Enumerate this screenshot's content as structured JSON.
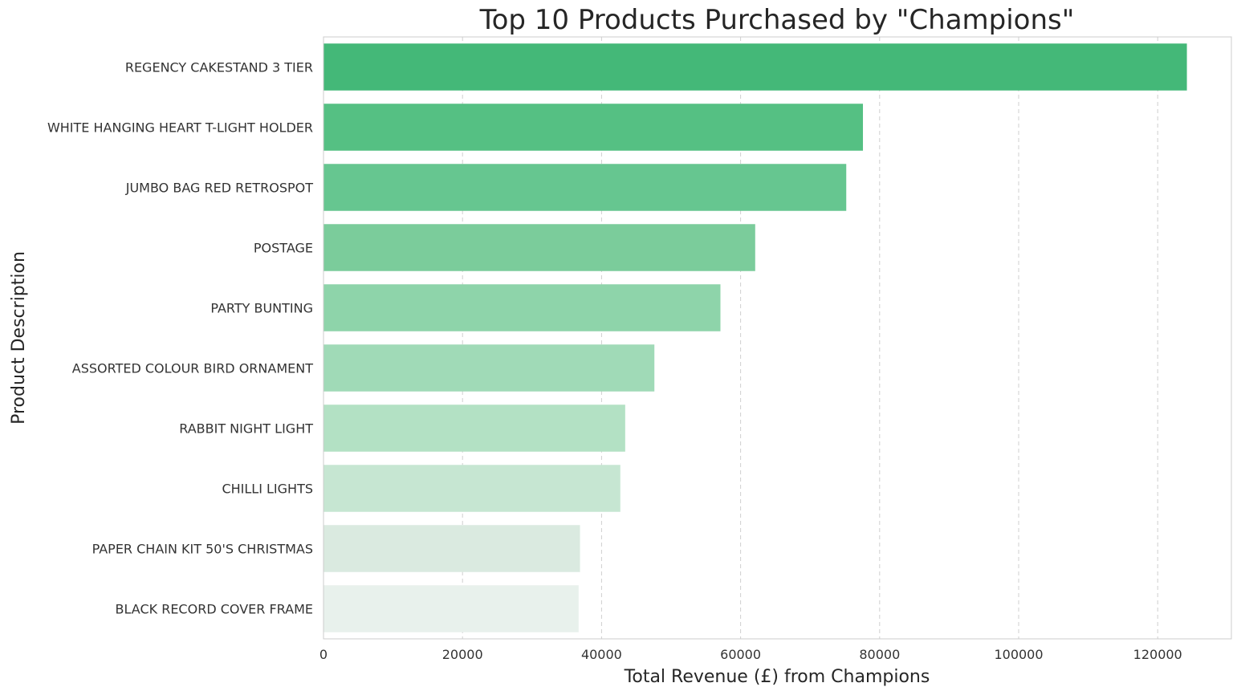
{
  "chart_data": {
    "type": "bar",
    "orientation": "horizontal",
    "title": "Top 10 Products Purchased by \"Champions\"",
    "xlabel": "Total Revenue (£) from Champions",
    "ylabel": "Product Description",
    "categories": [
      "REGENCY CAKESTAND 3 TIER",
      "WHITE HANGING HEART T-LIGHT HOLDER",
      "JUMBO BAG RED RETROSPOT",
      "POSTAGE",
      "PARTY BUNTING",
      "ASSORTED COLOUR BIRD ORNAMENT",
      "RABBIT NIGHT LIGHT",
      "CHILLI LIGHTS",
      "PAPER CHAIN KIT 50'S CHRISTMAS",
      "BLACK RECORD COVER FRAME"
    ],
    "values": [
      124200,
      77600,
      75200,
      62100,
      57100,
      47600,
      43400,
      42700,
      36900,
      36700
    ],
    "colors": [
      "#44b878",
      "#55c083",
      "#66c690",
      "#7bcc9b",
      "#8ed4aa",
      "#a0dab7",
      "#b3e1c4",
      "#c6e6d2",
      "#daeae0",
      "#e8f1ec"
    ],
    "xticks": [
      0,
      20000,
      40000,
      60000,
      80000,
      100000,
      120000
    ],
    "xtick_labels": [
      "0",
      "20000",
      "40000",
      "60000",
      "80000",
      "100000",
      "120000"
    ],
    "xlim": [
      0,
      130600
    ],
    "grid": "x-dashed",
    "legend": "none"
  }
}
